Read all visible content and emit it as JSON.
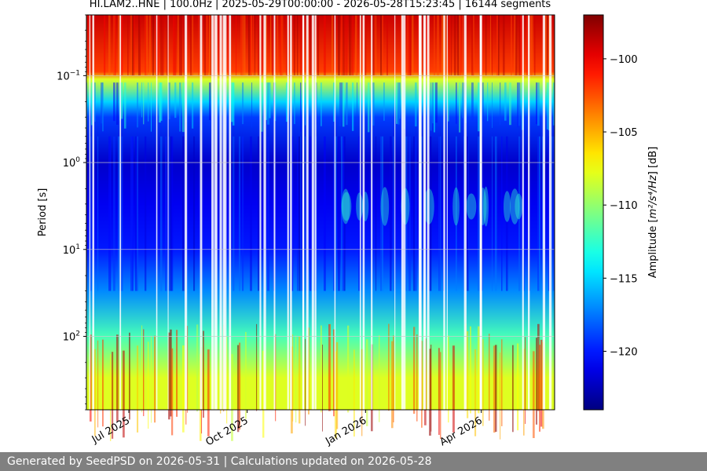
{
  "chart_data": {
    "type": "heatmap",
    "title": "HI.LAM2..HNE | 100.0Hz | 2025-05-29T00:00:00 - 2026-05-28T15:23:45 | 16144 segments",
    "xlabel": "",
    "ylabel": "Period [s]",
    "x_range": [
      "2025-05-29",
      "2026-05-28"
    ],
    "x_ticks": [
      {
        "date": "2025-07-01",
        "label": "Jul 2025"
      },
      {
        "date": "2025-10-01",
        "label": "Oct 2025"
      },
      {
        "date": "2026-01-01",
        "label": "Jan 2026"
      },
      {
        "date": "2026-04-01",
        "label": "Apr 2026"
      }
    ],
    "y_scale": "log",
    "y_inverted": true,
    "y_range": [
      0.02,
      700
    ],
    "y_ticks": [
      {
        "value": 0.1,
        "base": "10",
        "exp": "−1"
      },
      {
        "value": 1,
        "base": "10",
        "exp": "0"
      },
      {
        "value": 10,
        "base": "10",
        "exp": "1"
      },
      {
        "value": 100,
        "base": "10",
        "exp": "2"
      }
    ],
    "grid": true,
    "colormap": "jet",
    "colorbar": {
      "label_prefix": "Amplitude [",
      "label_units": "m²/s⁴/Hz",
      "label_suffix": "] [dB]",
      "range": [
        -124,
        -97
      ],
      "ticks": [
        -100,
        -105,
        -110,
        -115,
        -120
      ],
      "tick_labels": [
        "−100",
        "−105",
        "−110",
        "−115",
        "−120"
      ]
    },
    "period_profile": [
      {
        "period": 0.02,
        "amplitude_db": -99
      },
      {
        "period": 0.09,
        "amplitude_db": -102
      },
      {
        "period": 0.11,
        "amplitude_db": -108
      },
      {
        "period": 0.2,
        "amplitude_db": -115
      },
      {
        "period": 0.3,
        "amplitude_db": -119
      },
      {
        "period": 1,
        "amplitude_db": -122
      },
      {
        "period": 3,
        "amplitude_db": -121
      },
      {
        "period": 10,
        "amplitude_db": -120
      },
      {
        "period": 30,
        "amplitude_db": -117
      },
      {
        "period": 100,
        "amplitude_db": -112
      },
      {
        "period": 300,
        "amplitude_db": -108
      },
      {
        "period": 700,
        "amplitude_db": -108
      }
    ]
  },
  "footer": "Generated by SeedPSD on 2026-05-31 | Calculations updated on 2026-05-28"
}
